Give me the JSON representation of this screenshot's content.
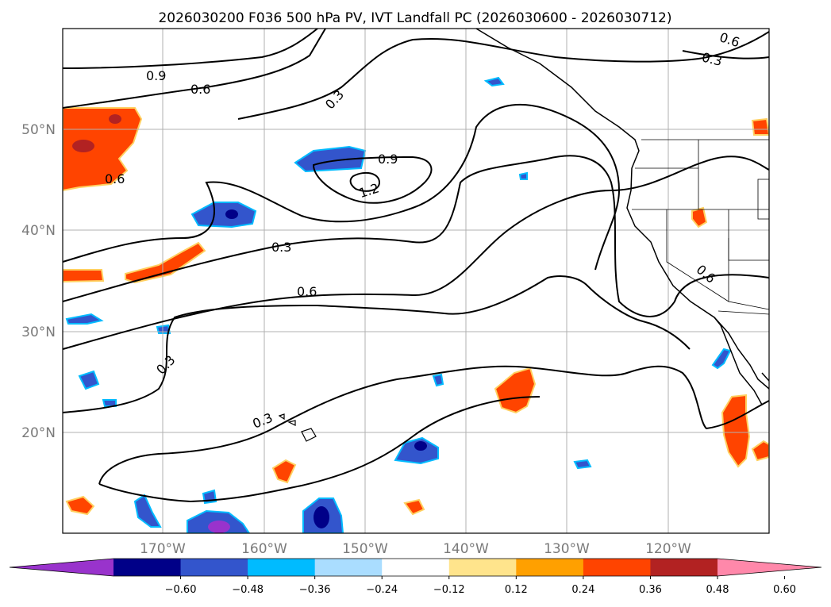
{
  "title": "2026030200 F036 500 hPa PV, IVT Landfall PC (2026030600 - 2026030712)",
  "latitude_labels": [
    "50°N",
    "40°N",
    "30°N",
    "20°N"
  ],
  "longitude_labels": [
    "170°W",
    "160°W",
    "150°W",
    "140°W",
    "130°W",
    "120°W"
  ],
  "contour_labels": [
    "0.9",
    "0.6",
    "0.3",
    "0.6",
    "0.3",
    "0.9",
    "1.2",
    "0.6",
    "0.3",
    "0.6",
    "0.6",
    "0.3",
    "0.3"
  ],
  "colorbar": {
    "labels": [
      "−0.60",
      "−0.48",
      "−0.36",
      "−0.24",
      "−0.12",
      "0.12",
      "0.24",
      "0.36",
      "0.48",
      "0.60"
    ],
    "colors": [
      "#9933cc",
      "#000088",
      "#3355cc",
      "#00bbff",
      "#aaddff",
      "#ffffff",
      "#ffe48c",
      "#ffa000",
      "#ff4400",
      "#b22222",
      "#ff88aa"
    ]
  },
  "colors": {
    "negative_fill": "#3355cc",
    "negative_core": "#000088",
    "positive_fill": "#ff4400",
    "positive_core": "#b22222",
    "contour": "#000000",
    "grid": "#b0b0b0"
  }
}
